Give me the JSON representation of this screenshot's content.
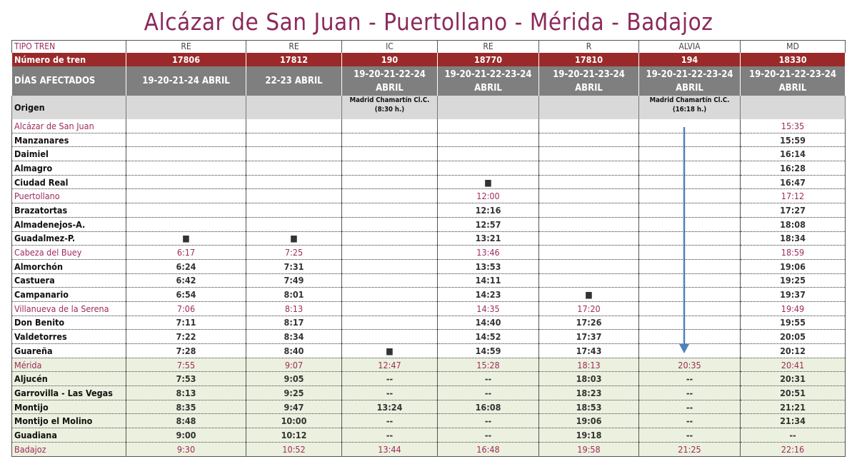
{
  "title": "Alcázar de San Juan - Puertollano - Mérida - Badajoz",
  "header_rows": [
    {
      "label": "TIPO TREN",
      "cells": [
        "RE",
        "RE",
        "IC",
        "RE",
        "R",
        "ALVIA",
        "MD"
      ]
    },
    {
      "label": "Número de tren",
      "cells": [
        "17806",
        "17812",
        "190",
        "18770",
        "17810",
        "194",
        "18330"
      ]
    },
    {
      "label": "DÍAS AFECTADOS",
      "cells": [
        "19-20-21-24  ABRIL",
        "22-23 ABRIL",
        "19-20-21-22-24 ABRIL",
        "19-20-21-22-23-24 ABRIL",
        "19-20-21-23-24 ABRIL",
        "19-20-21-22-23-24 ABRIL",
        "19-20-21-22-23-24 ABRIL"
      ]
    },
    {
      "label": "Origen",
      "cells": [
        null,
        null,
        "Madrid Chamartín Cl.C. (8:30 h.)",
        null,
        null,
        "Madrid Chamartín Cl.C. (16:18 h.)",
        null
      ]
    }
  ],
  "stations": [
    {
      "name": "Alcázar de San Juan",
      "highlight": true,
      "shade": false,
      "times": [
        null,
        null,
        null,
        null,
        null,
        null,
        "15:35"
      ]
    },
    {
      "name": "Manzanares",
      "highlight": false,
      "shade": false,
      "times": [
        null,
        null,
        null,
        null,
        null,
        null,
        "15:59"
      ]
    },
    {
      "name": "Daimiel",
      "highlight": false,
      "shade": false,
      "times": [
        null,
        null,
        null,
        null,
        null,
        null,
        "16:14"
      ]
    },
    {
      "name": "Almagro",
      "highlight": false,
      "shade": false,
      "times": [
        null,
        null,
        null,
        null,
        null,
        null,
        "16:28"
      ]
    },
    {
      "name": "Ciudad Real",
      "highlight": false,
      "shade": false,
      "times": [
        null,
        null,
        null,
        "■",
        null,
        null,
        "16:47"
      ]
    },
    {
      "name": "Puertollano",
      "highlight": true,
      "shade": false,
      "times": [
        null,
        null,
        null,
        "12:00",
        null,
        null,
        "17:12"
      ]
    },
    {
      "name": "Brazatortas",
      "highlight": false,
      "shade": false,
      "times": [
        null,
        null,
        null,
        "12:16",
        null,
        null,
        "17:27"
      ]
    },
    {
      "name": "Almadenejos-A.",
      "highlight": false,
      "shade": false,
      "times": [
        null,
        null,
        null,
        "12:57",
        null,
        null,
        "18:08"
      ]
    },
    {
      "name": "Guadalmez-P.",
      "highlight": false,
      "shade": false,
      "times": [
        "■",
        "■",
        null,
        "13:21",
        null,
        null,
        "18:34"
      ]
    },
    {
      "name": "Cabeza del Buey",
      "highlight": true,
      "shade": false,
      "times": [
        "6:17",
        "7:25",
        null,
        "13:46",
        null,
        null,
        "18:59"
      ]
    },
    {
      "name": "Almorchón",
      "highlight": false,
      "shade": false,
      "times": [
        "6:24",
        "7:31",
        null,
        "13:53",
        null,
        null,
        "19:06"
      ]
    },
    {
      "name": "Castuera",
      "highlight": false,
      "shade": false,
      "times": [
        "6:42",
        "7:49",
        null,
        "14:11",
        null,
        null,
        "19:25"
      ]
    },
    {
      "name": "Campanario",
      "highlight": false,
      "shade": false,
      "times": [
        "6:54",
        "8:01",
        null,
        "14:23",
        "■",
        null,
        "19:37"
      ]
    },
    {
      "name": "Villanueva de la Serena",
      "highlight": true,
      "shade": false,
      "times": [
        "7:06",
        "8:13",
        null,
        "14:35",
        "17:20",
        null,
        "19:49"
      ]
    },
    {
      "name": "Don Benito",
      "highlight": false,
      "shade": false,
      "times": [
        "7:11",
        "8:17",
        null,
        "14:40",
        "17:26",
        null,
        "19:55"
      ]
    },
    {
      "name": "Valdetorres",
      "highlight": false,
      "shade": false,
      "times": [
        "7:22",
        "8:34",
        null,
        "14:52",
        "17:37",
        null,
        "20:05"
      ]
    },
    {
      "name": "Guareña",
      "highlight": false,
      "shade": false,
      "times": [
        "7:28",
        "8:40",
        "■",
        "14:59",
        "17:43",
        null,
        "20:12"
      ]
    },
    {
      "name": "Mérida",
      "highlight": true,
      "shade": true,
      "times": [
        "7:55",
        "9:07",
        "12:47",
        "15:28",
        "18:13",
        "20:35",
        "20:41"
      ]
    },
    {
      "name": "Aljucén",
      "highlight": false,
      "shade": true,
      "times": [
        "7:53",
        "9:05",
        "--",
        "--",
        "18:03",
        "--",
        "20:31"
      ]
    },
    {
      "name": "Garrovilla - Las Vegas",
      "highlight": false,
      "shade": true,
      "times": [
        "8:13",
        "9:25",
        "--",
        "--",
        "18:23",
        "--",
        "20:51"
      ]
    },
    {
      "name": "Montijo",
      "highlight": false,
      "shade": true,
      "times": [
        "8:35",
        "9:47",
        "13:24",
        "16:08",
        "18:53",
        "--",
        "21:21"
      ]
    },
    {
      "name": "Montijo el Molino",
      "highlight": false,
      "shade": true,
      "times": [
        "8:48",
        "10:00",
        "--",
        "--",
        "19:06",
        "--",
        "21:34"
      ]
    },
    {
      "name": "Guadiana",
      "highlight": false,
      "shade": true,
      "times": [
        "9:00",
        "10:12",
        "--",
        "--",
        "19:18",
        "--",
        "--"
      ]
    },
    {
      "name": "Badajoz",
      "highlight": true,
      "shade": true,
      "times": [
        "9:30",
        "10:52",
        "13:44",
        "16:48",
        "19:58",
        "21:25",
        "22:16"
      ]
    }
  ]
}
